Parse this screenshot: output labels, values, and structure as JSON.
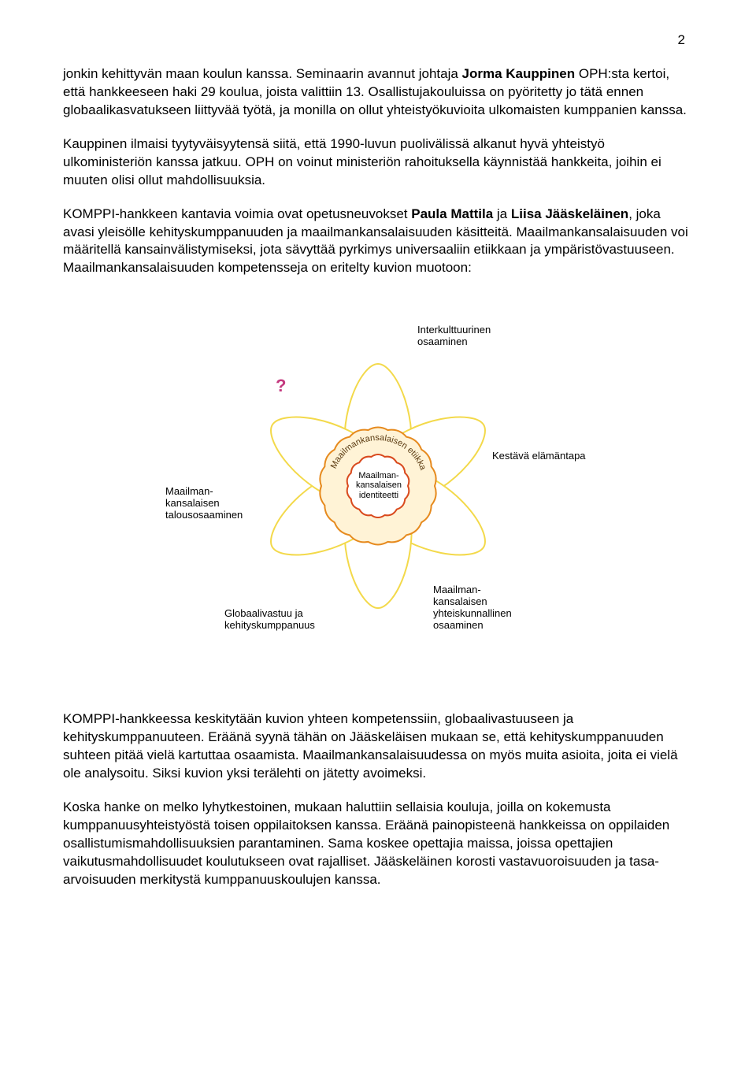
{
  "page_number": "2",
  "paragraphs": {
    "p1a": "jonkin kehittyvän maan koulun kanssa. Seminaarin avannut johtaja ",
    "p1_bold1": "Jorma Kauppinen",
    "p1b": " OPH:sta kertoi, että hankkeeseen haki 29 koulua, joista valittiin 13. Osallistujakouluissa on pyöritetty jo tätä ennen globaalikasvatukseen liittyvää työtä, ja monilla on ollut yhteistyökuvioita ulkomaisten kumppanien kanssa.",
    "p2": "Kauppinen ilmaisi tyytyväisyytensä siitä, että 1990-luvun puolivälissä alkanut hyvä yhteistyö ulkoministeriön kanssa jatkuu. OPH on voinut ministeriön rahoituksella käynnistää hankkeita, joihin ei muuten olisi ollut mahdollisuuksia.",
    "p3a": "KOMPPI-hankkeen kantavia voimia ovat opetusneuvokset ",
    "p3_bold1": "Paula Mattila",
    "p3b": " ja ",
    "p3_bold2": "Liisa Jääskeläinen",
    "p3c": ", joka avasi yleisölle kehityskumppanuuden ja maailmankansalaisuuden käsitteitä. Maailmankansalaisuuden voi määritellä kansainvälistymiseksi, jota sävyttää pyrkimys universaaliin etiikkaan ja ympäristövastuuseen. Maailmankansalaisuuden kompetensseja on eritelty kuvion muotoon:",
    "p4": "KOMPPI-hankkeessa keskitytään kuvion yhteen kompetenssiin, globaalivastuuseen ja kehityskumppanuuteen. Eräänä syynä tähän on Jääskeläisen mukaan se, että kehityskumppanuuden suhteen pitää vielä kartuttaa osaamista. Maailmankansalaisuudessa on myös muita asioita, joita ei vielä ole analysoitu. Siksi kuvion yksi terälehti on jätetty avoimeksi.",
    "p5": "Koska hanke on melko lyhytkestoinen, mukaan haluttiin sellaisia kouluja, joilla on kokemusta kumppanuusyhteistyöstä toisen oppilaitoksen kanssa. Eräänä painopisteenä hankkeissa on oppilaiden osallistumismahdollisuuksien parantaminen. Sama koskee opettajia maissa, joissa opettajien vaikutusmahdollisuudet koulutukseen ovat rajalliset. Jääskeläinen korosti vastavuoroisuuden ja tasa-arvoisuuden merkitystä kumppanuuskoulujen kanssa."
  },
  "diagram": {
    "type": "flower-infographic",
    "background": "#ffffff",
    "petal_stroke": "#f3d94a",
    "petal_stroke_width": 2,
    "petal_fill": "#ffffff",
    "inner_ring_stroke": "#e68a1e",
    "inner_ring_fill": "#fff3d6",
    "core_stroke": "#d94a1e",
    "core_fill": "#ffffff",
    "question_color": "#c4397f",
    "label_color": "#000000",
    "label_fontsize": 13,
    "center_fontsize": 11,
    "labels": {
      "top": "Interkulttuurinen\nosaaminen",
      "top_left": "?",
      "right": "Kestävä elämäntapa",
      "left": "Maailman-\nkansalaisen\ntalousosaaminen",
      "bottom_left": "Globaalivastuu ja\nkehityskumppanuus",
      "bottom_right": "Maailman-\nkansalaisen\nyhteiskunnallinen\nosaaminen",
      "ring_text": "Maailmankansalaisen etiikka",
      "core_text": "Maailman-\nkansalaisen\nidentiteetti"
    }
  }
}
